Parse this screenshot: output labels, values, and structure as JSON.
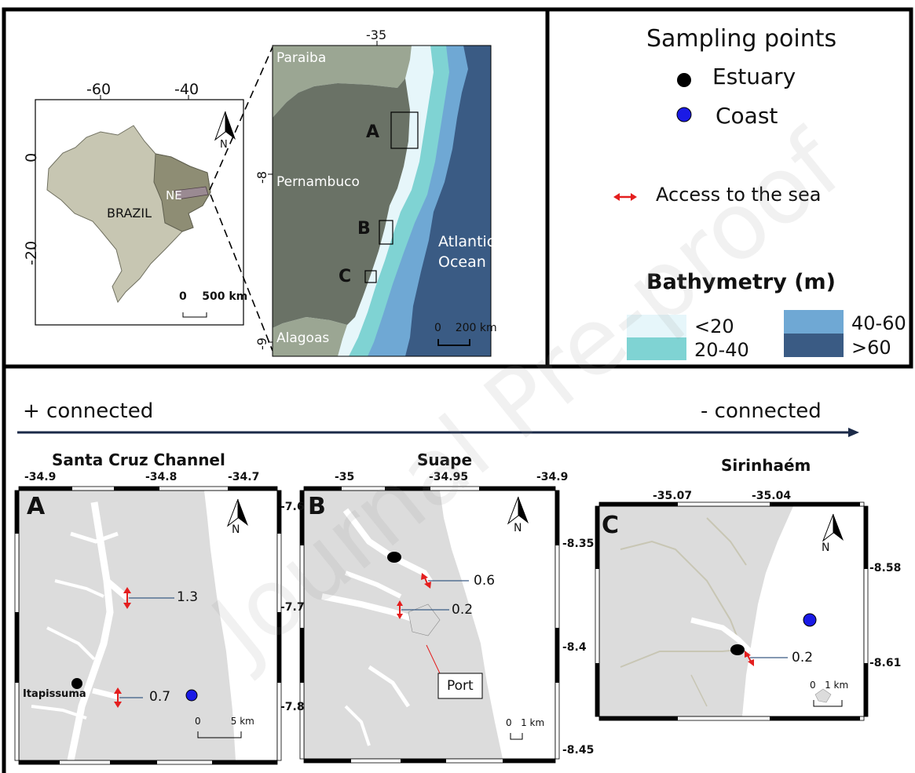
{
  "watermark": "Journal Pre-proof",
  "overview": {
    "brazil_map": {
      "lon_ticks": [
        "-60",
        "-40"
      ],
      "lat_ticks": [
        "0",
        "-20"
      ],
      "country_label": "BRAZIL",
      "region_label": "NE",
      "north_label": "N",
      "scale_label": "0    500 km"
    },
    "pernambuco_map": {
      "lon_tick": "-35",
      "lat_ticks": [
        "-8",
        "-9"
      ],
      "state_labels": [
        "Paraiba",
        "Pernambuco",
        "Alagoas"
      ],
      "ocean_label": [
        "Atlantic",
        "Ocean"
      ],
      "site_labels": [
        "A",
        "B",
        "C"
      ],
      "scale_label": "0    200 km"
    }
  },
  "legend": {
    "title": "Sampling points",
    "items": [
      {
        "label": "Estuary",
        "color": "#000000"
      },
      {
        "label": "Coast",
        "color": "#1a1ae6"
      }
    ],
    "access_label": "Access to the sea",
    "access_color": "#e41e1e",
    "bathymetry": {
      "title": "Bathymetry (m)",
      "classes": [
        {
          "label": "<20",
          "color": "#e6f6fa"
        },
        {
          "label": "20-40",
          "color": "#7fd3d3"
        },
        {
          "label": "40-60",
          "color": "#6fa8d4"
        },
        {
          "label": ">60",
          "color": "#3a5b84"
        }
      ]
    }
  },
  "connectivity": {
    "left": "+ connected",
    "right": "- connected"
  },
  "sites": [
    {
      "title": "Santa Cruz Channel",
      "panel": "A",
      "lon_ticks": [
        "-34.9",
        "-34.8",
        "-34.7"
      ],
      "lat_ticks": [
        "-7.6",
        "-7.7",
        "-7.8"
      ],
      "place_label": "Itapissuma",
      "values": [
        "1.3",
        "0.7"
      ],
      "north_label": "N",
      "scale_label": "0          5 km"
    },
    {
      "title": "Suape",
      "panel": "B",
      "lon_ticks": [
        "-35",
        "-34.95",
        "-34.9"
      ],
      "lat_ticks": [
        "-8.35",
        "-8.4",
        "-8.45"
      ],
      "values": [
        "0.6",
        "0.2"
      ],
      "port_label": "Port",
      "north_label": "N",
      "scale_label": "0   1 km"
    },
    {
      "title": "Sirinhaém",
      "panel": "C",
      "lon_ticks": [
        "-35.07",
        "-35.04"
      ],
      "lat_ticks": [
        "-8.58",
        "-8.61"
      ],
      "values": [
        "0.2"
      ],
      "north_label": "N",
      "scale_label": "0   1 km"
    }
  ]
}
